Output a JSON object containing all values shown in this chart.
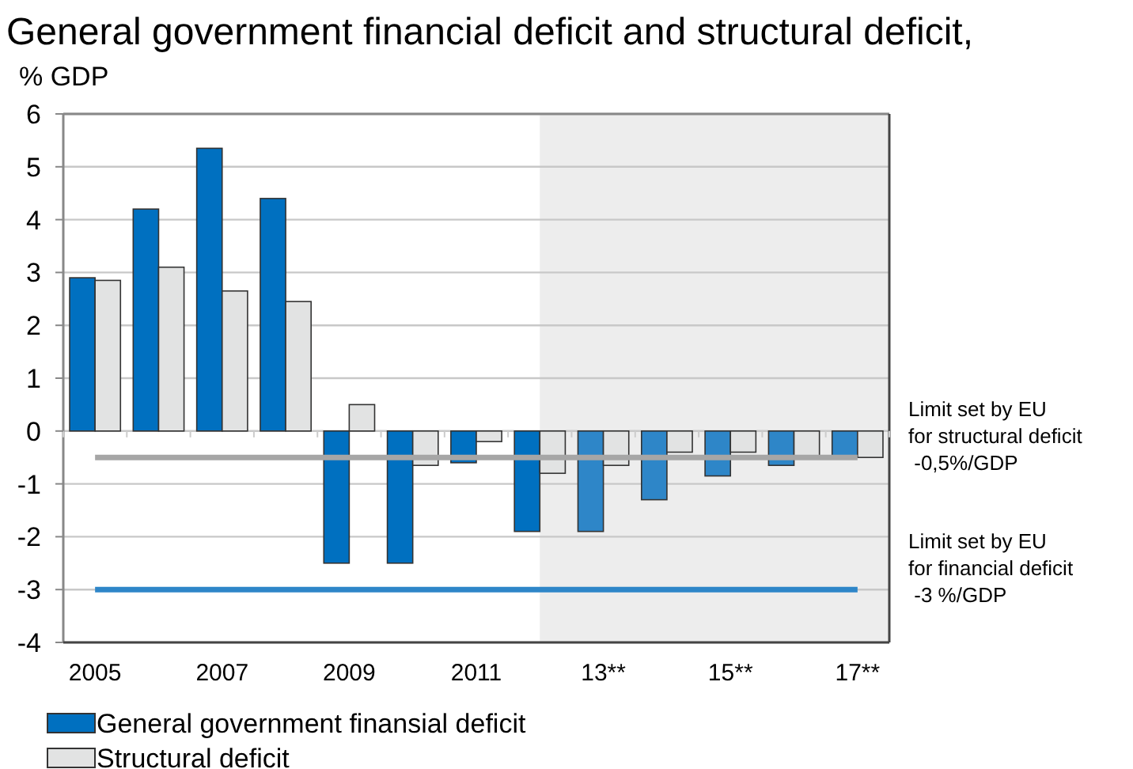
{
  "chart_data": {
    "type": "bar",
    "title": "General government financial deficit and structural deficit,",
    "subtitle": "% GDP",
    "categories": [
      "2005",
      null,
      "2007",
      null,
      "2009",
      null,
      "2011",
      null,
      "13**",
      null,
      "15**",
      null,
      "17**"
    ],
    "series": [
      {
        "name": "General government finansial deficit",
        "color": "#0070c0",
        "colors": [
          "#0070c0",
          "#0070c0",
          "#0070c0",
          "#0070c0",
          "#0070c0",
          "#0070c0",
          "#0070c0",
          "#0070c0",
          "#2e86c8",
          "#2e86c8",
          "#2e86c8",
          "#2e86c8",
          "#2e86c8"
        ],
        "values": [
          2.9,
          4.2,
          5.35,
          4.4,
          -2.5,
          -2.5,
          -0.6,
          -1.9,
          -1.9,
          -1.3,
          -0.85,
          -0.65,
          -0.5
        ]
      },
      {
        "name": "Structural deficit",
        "color": "#e2e3e3",
        "values": [
          2.85,
          3.1,
          2.65,
          2.45,
          0.5,
          -0.65,
          -0.2,
          -0.8,
          -0.65,
          -0.4,
          -0.4,
          -0.5,
          -0.5
        ]
      }
    ],
    "ylim": [
      -4,
      6
    ],
    "yticks": [
      -4,
      -3,
      -2,
      -1,
      0,
      1,
      2,
      3,
      4,
      5,
      6
    ],
    "grid": "y",
    "legend": "bottom",
    "ref_lines": [
      {
        "axis": "y",
        "value": -0.5,
        "label": "Limit set by EU\nfor structural deficit\n -0,5%/GDP",
        "color": "#a6a6a6"
      },
      {
        "axis": "y",
        "value": -3,
        "label": "Limit set by EU\nfor financial deficit\n -3 %/GDP",
        "color": "#2e86c8"
      }
    ]
  }
}
